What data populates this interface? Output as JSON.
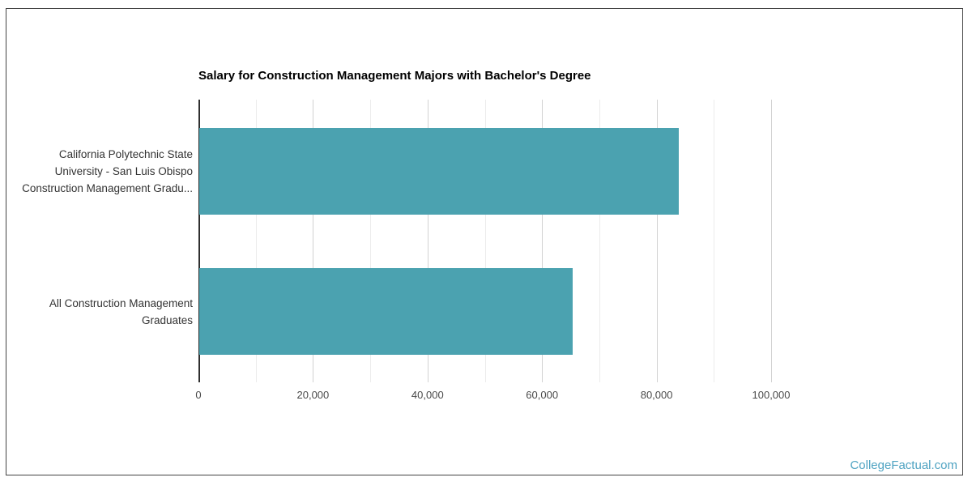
{
  "branding": {
    "watermark": "CollegeFactual.com",
    "watermark_color": "#4fa3c2"
  },
  "chart_data": {
    "type": "bar",
    "orientation": "horizontal",
    "title": "Salary for Construction Management Majors with Bachelor's Degree",
    "categories": [
      "California Polytechnic State University - San Luis Obispo Construction Management Gradu...",
      "All Construction Management Graduates"
    ],
    "category_lines": [
      [
        "California Polytechnic State",
        "University - San Luis Obispo",
        "Construction Management Gradu..."
      ],
      [
        "All Construction Management",
        "Graduates"
      ]
    ],
    "values": [
      83700,
      65200
    ],
    "xlabel": "",
    "ylabel": "",
    "xlim": [
      0,
      100000
    ],
    "x_ticks": [
      0,
      20000,
      40000,
      60000,
      80000,
      100000
    ],
    "x_minor_gridline_step": 10000,
    "grid": "vertical",
    "legend": "none",
    "bar_color": "#4ba2b0",
    "gridline_minor_color": "#ececec",
    "gridline_major_color": "#d2d2d2",
    "axis_color": "#2f2f2f"
  }
}
